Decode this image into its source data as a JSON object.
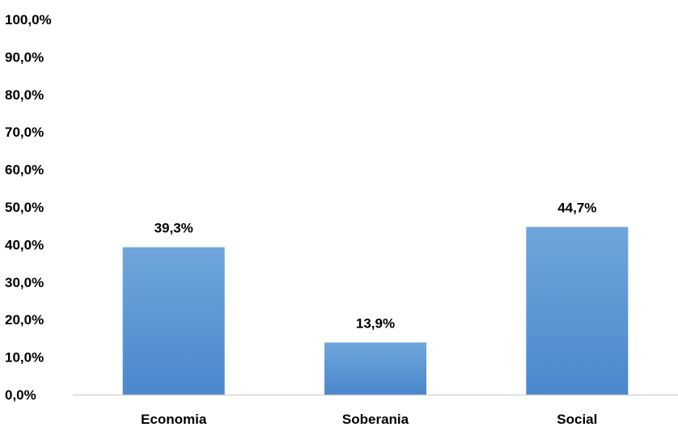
{
  "chart_data": {
    "type": "bar",
    "categories": [
      "Economia",
      "Soberania",
      "Social"
    ],
    "values": [
      39.3,
      13.9,
      44.7
    ],
    "value_labels": [
      "39,3%",
      "13,9%",
      "44,7%"
    ],
    "title": "",
    "xlabel": "",
    "ylabel": "",
    "ylim": [
      0,
      100
    ],
    "yticks": [
      0,
      10,
      20,
      30,
      40,
      50,
      60,
      70,
      80,
      90,
      100
    ],
    "ytick_labels": [
      "0,0%",
      "10,0%",
      "20,0%",
      "30,0%",
      "40,0%",
      "50,0%",
      "60,0%",
      "70,0%",
      "80,0%",
      "90,0%",
      "100,0%"
    ],
    "grid": false,
    "legend": "none",
    "colors": {
      "bar_top": "#6fa6dc",
      "bar_bottom": "#4a88cc",
      "axis": "#d0d0d0",
      "text": "#000000"
    }
  }
}
